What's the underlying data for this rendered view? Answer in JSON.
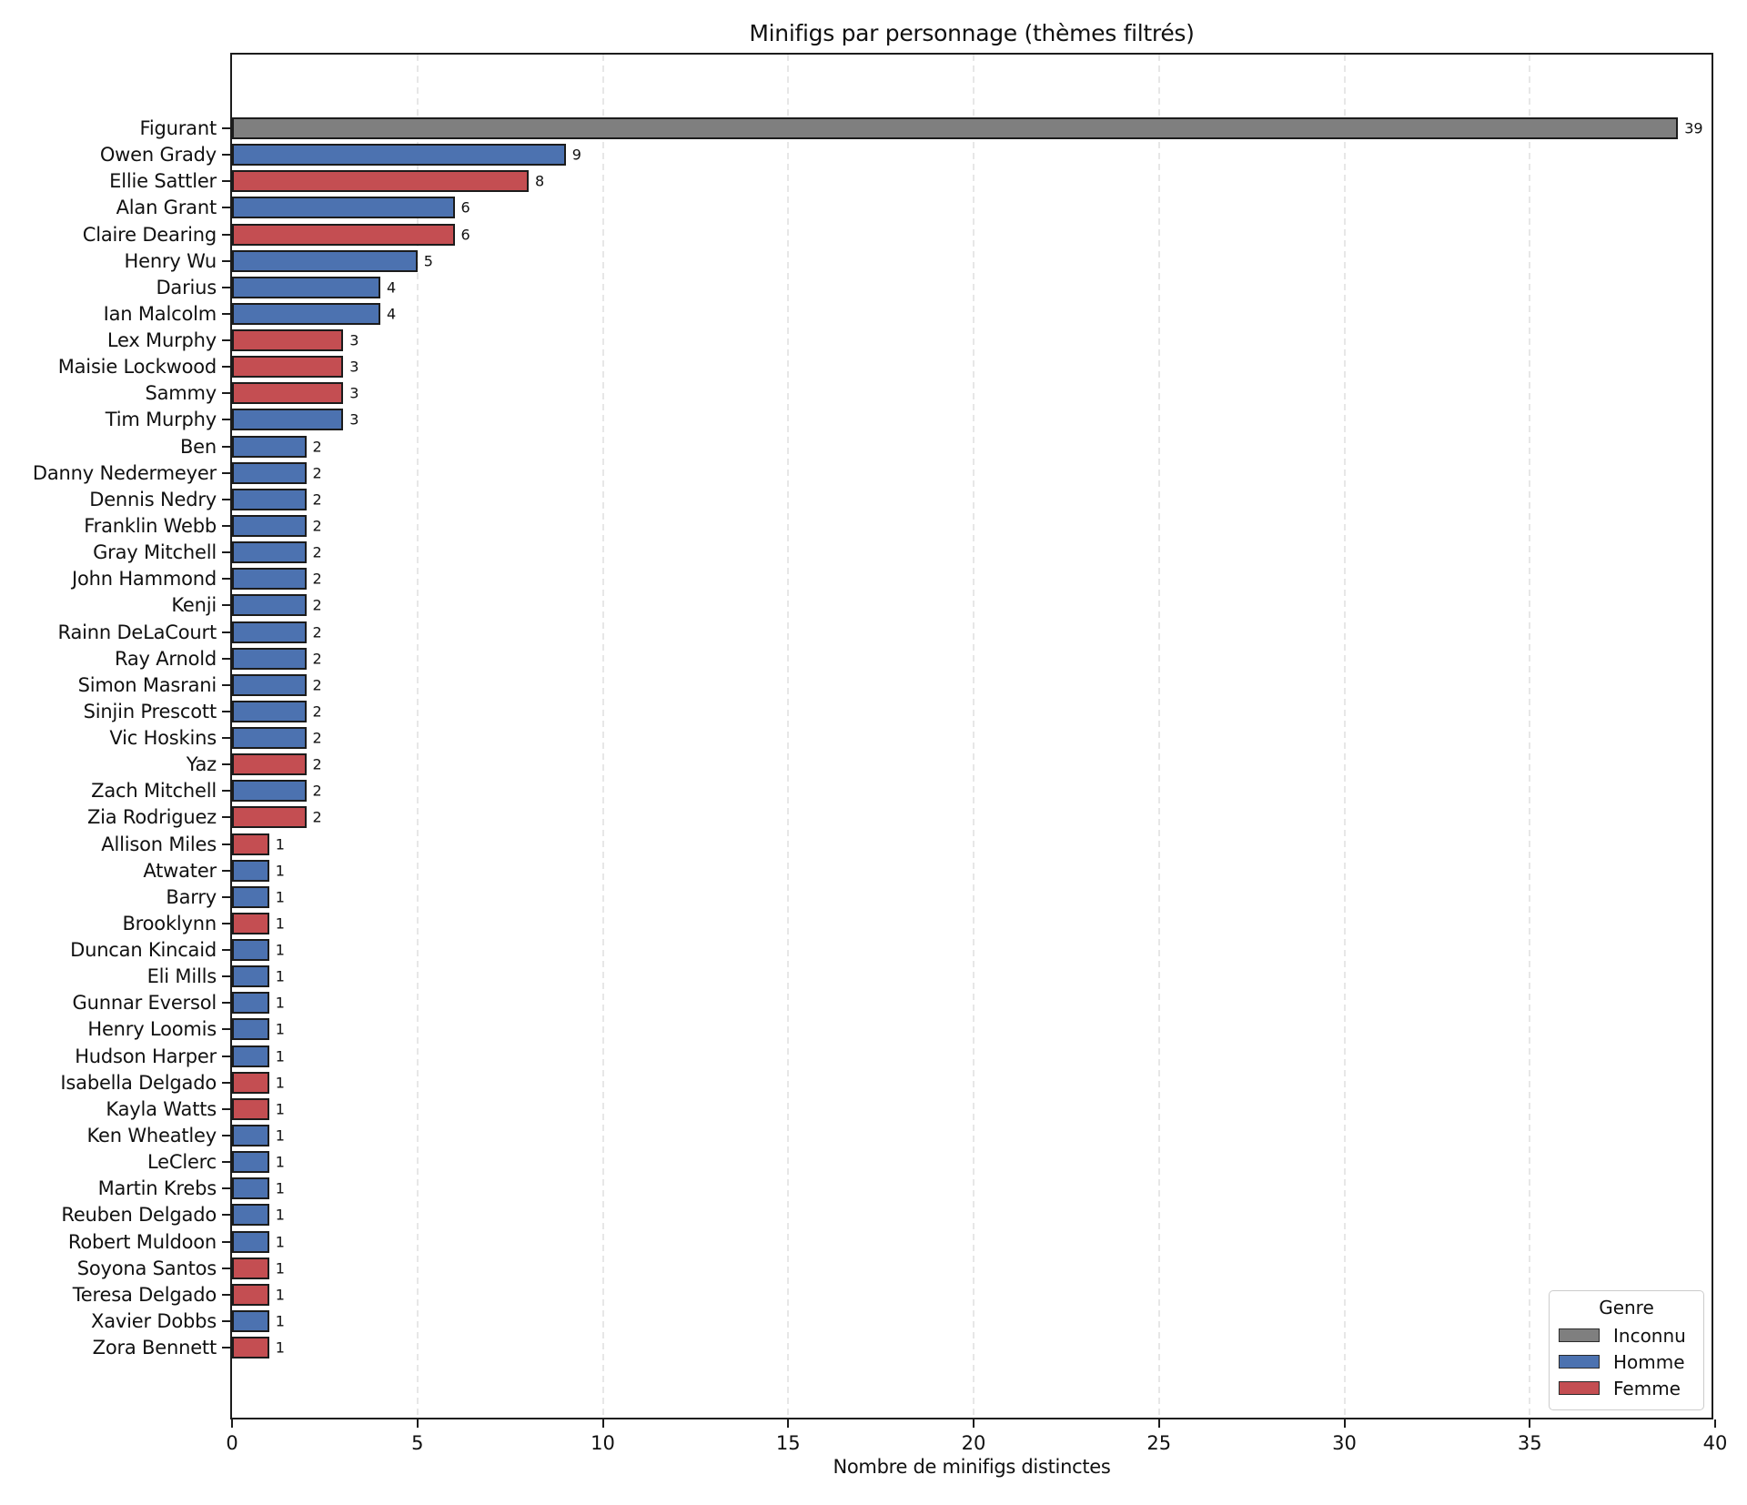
{
  "title": "Minifigs par personnage (thèmes filtrés)",
  "xlabel": "Nombre de minifigs distinctes",
  "legend": {
    "title": "Genre",
    "position": "lower right",
    "items": [
      {
        "label": "Inconnu",
        "color": "#7f7f7f"
      },
      {
        "label": "Homme",
        "color": "#4c72b0"
      },
      {
        "label": "Femme",
        "color": "#c44e52"
      }
    ]
  },
  "colors": {
    "bar_edge": "#1c1c1c",
    "grid": "#e7e7e7",
    "spine": "#1c1c1c",
    "background": "#ffffff"
  },
  "chart_data": {
    "type": "bar",
    "orientation": "horizontal",
    "title": "Minifigs par personnage (thèmes filtrés)",
    "xlabel": "Nombre de minifigs distinctes",
    "ylabel": "",
    "xlim": [
      0,
      40
    ],
    "xticks": [
      0,
      5,
      10,
      15,
      20,
      25,
      30,
      35,
      40
    ],
    "grid": true,
    "legend_position": "lower right",
    "categories": [
      "Figurant",
      "Owen Grady",
      "Ellie Sattler",
      "Alan Grant",
      "Claire Dearing",
      "Henry Wu",
      "Darius",
      "Ian Malcolm",
      "Lex Murphy",
      "Maisie Lockwood",
      "Sammy",
      "Tim Murphy",
      "Ben",
      "Danny Nedermeyer",
      "Dennis Nedry",
      "Franklin Webb",
      "Gray Mitchell",
      "John Hammond",
      "Kenji",
      "Rainn DeLaCourt",
      "Ray Arnold",
      "Simon Masrani",
      "Sinjin Prescott",
      "Vic Hoskins",
      "Yaz",
      "Zach Mitchell",
      "Zia Rodriguez",
      "Allison Miles",
      "Atwater",
      "Barry",
      "Brooklynn",
      "Duncan Kincaid",
      "Eli Mills",
      "Gunnar Eversol",
      "Henry Loomis",
      "Hudson Harper",
      "Isabella Delgado",
      "Kayla Watts",
      "Ken Wheatley",
      "LeClerc",
      "Martin Krebs",
      "Reuben Delgado",
      "Robert Muldoon",
      "Soyona Santos",
      "Teresa Delgado",
      "Xavier Dobbs",
      "Zora Bennett"
    ],
    "values": [
      39,
      9,
      8,
      6,
      6,
      5,
      4,
      4,
      3,
      3,
      3,
      3,
      2,
      2,
      2,
      2,
      2,
      2,
      2,
      2,
      2,
      2,
      2,
      2,
      2,
      2,
      2,
      1,
      1,
      1,
      1,
      1,
      1,
      1,
      1,
      1,
      1,
      1,
      1,
      1,
      1,
      1,
      1,
      1,
      1,
      1,
      1
    ],
    "genders": [
      "Inconnu",
      "Homme",
      "Femme",
      "Homme",
      "Femme",
      "Homme",
      "Homme",
      "Homme",
      "Femme",
      "Femme",
      "Femme",
      "Homme",
      "Homme",
      "Homme",
      "Homme",
      "Homme",
      "Homme",
      "Homme",
      "Homme",
      "Homme",
      "Homme",
      "Homme",
      "Homme",
      "Homme",
      "Femme",
      "Homme",
      "Femme",
      "Femme",
      "Homme",
      "Homme",
      "Femme",
      "Homme",
      "Homme",
      "Homme",
      "Homme",
      "Homme",
      "Femme",
      "Femme",
      "Homme",
      "Homme",
      "Homme",
      "Homme",
      "Homme",
      "Femme",
      "Femme",
      "Homme",
      "Femme"
    ],
    "series_colors": {
      "Inconnu": "#7f7f7f",
      "Homme": "#4c72b0",
      "Femme": "#c44e52"
    }
  }
}
